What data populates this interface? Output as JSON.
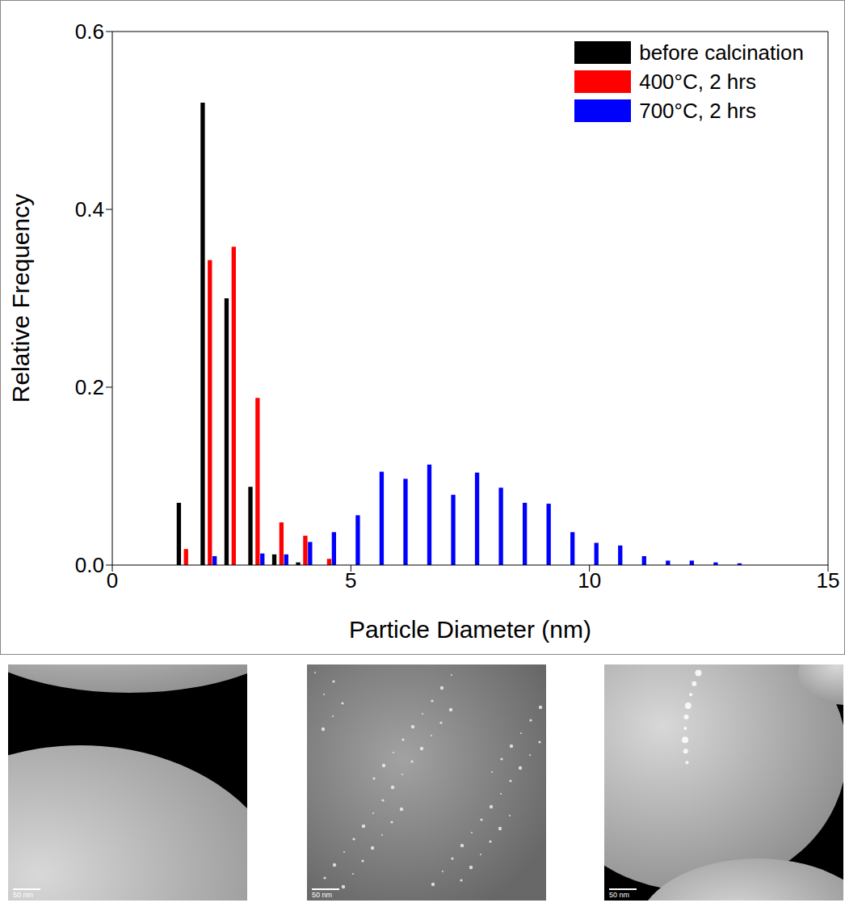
{
  "chart_data": {
    "type": "bar",
    "x_label": "Particle Diameter (nm)",
    "y_label": "Relative Frequency",
    "xlim": [
      0,
      15
    ],
    "xticks": [
      0,
      5,
      10,
      15
    ],
    "ylim": [
      0,
      0.6
    ],
    "yticks": [
      {
        "value": 0,
        "label": "0.0"
      },
      {
        "value": 0.2,
        "label": "0.2"
      },
      {
        "value": 0.4,
        "label": "0.4"
      },
      {
        "value": 0.6,
        "label": "0.6"
      }
    ],
    "legend": "top right",
    "series": [
      {
        "name": "before calcination",
        "color": "#000000",
        "x": [
          1.4,
          1.9,
          2.4,
          2.9,
          3.4,
          3.9
        ],
        "values": [
          0.07,
          0.52,
          0.3,
          0.088,
          0.012,
          0.003
        ]
      },
      {
        "name": "400°C, 2 hrs",
        "color": "#ff0000",
        "x": [
          1.55,
          2.05,
          2.55,
          3.05,
          3.55,
          4.05,
          4.55
        ],
        "values": [
          0.018,
          0.343,
          0.358,
          0.188,
          0.048,
          0.033,
          0.007
        ]
      },
      {
        "name": "700°C, 2 hrs",
        "color": "#0000ff",
        "x": [
          2.15,
          3.15,
          3.65,
          4.15,
          4.65,
          5.15,
          5.65,
          6.15,
          6.65,
          7.15,
          7.65,
          8.15,
          8.65,
          9.15,
          9.65,
          10.15,
          10.65,
          11.15,
          11.65,
          12.15,
          12.65,
          13.15
        ],
        "values": [
          0.01,
          0.013,
          0.012,
          0.026,
          0.037,
          0.056,
          0.105,
          0.097,
          0.113,
          0.079,
          0.104,
          0.087,
          0.07,
          0.069,
          0.037,
          0.025,
          0.022,
          0.01,
          0.005,
          0.005,
          0.003,
          0.002
        ]
      }
    ]
  },
  "images": [
    {
      "scale_bar": "50 nm"
    },
    {
      "scale_bar": "50 nm"
    },
    {
      "scale_bar": "50 nm"
    }
  ]
}
